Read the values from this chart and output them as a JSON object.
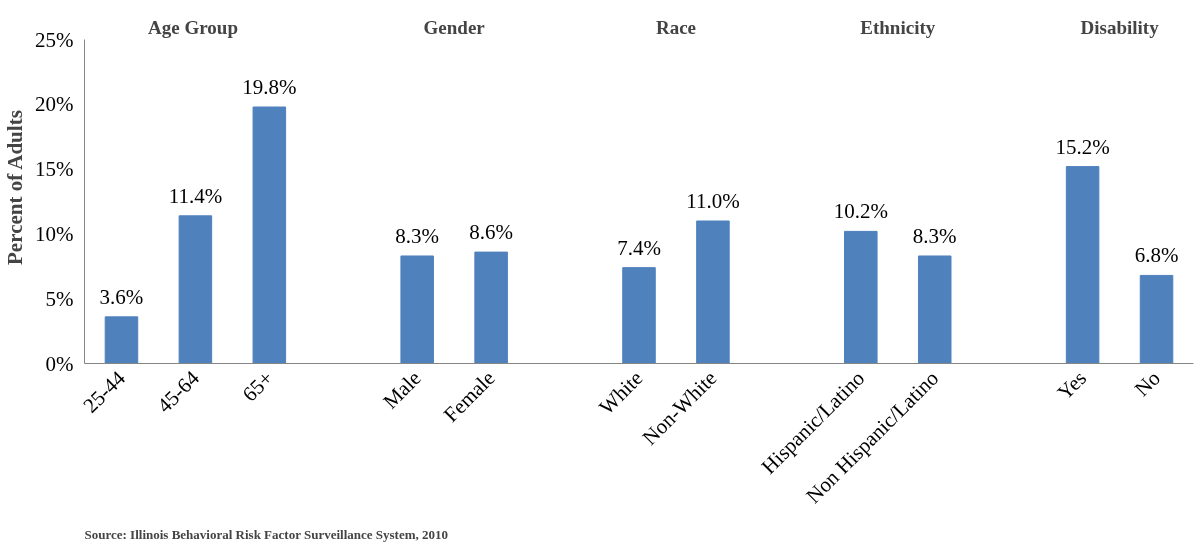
{
  "chart_data": {
    "type": "bar",
    "ylabel": "Percent of Adults",
    "categories": [
      "25-44",
      "45-64",
      "65+",
      null,
      "Male",
      "Female",
      null,
      "White",
      "Non-White",
      null,
      "Hispanic/Latino",
      "Non Hispanic/Latino",
      null,
      "Yes",
      "No"
    ],
    "values": [
      3.6,
      11.4,
      19.8,
      null,
      8.3,
      8.6,
      null,
      7.4,
      11.0,
      null,
      10.2,
      8.3,
      null,
      15.2,
      6.8
    ],
    "value_labels": [
      "3.6%",
      "11.4%",
      "19.8%",
      null,
      "8.3%",
      "8.6%",
      null,
      "7.4%",
      "11.0%",
      null,
      "10.2%",
      "8.3%",
      null,
      "15.2%",
      "6.8%"
    ],
    "color": "#4f81bd",
    "ylim": [
      0,
      25
    ],
    "yticks": [
      {
        "value": 0,
        "label": "0%"
      },
      {
        "value": 5,
        "label": "5%"
      },
      {
        "value": 10,
        "label": "10%"
      },
      {
        "value": 15,
        "label": "15%"
      },
      {
        "value": 20,
        "label": "20%"
      },
      {
        "value": 25,
        "label": "25%"
      }
    ],
    "grid": false,
    "annotations": [
      "Age  Group",
      "Gender",
      "Race",
      "Ethnicity",
      "Disability",
      "Source: Illinois Behavioral Risk Factor Surveillance System, 2010"
    ]
  }
}
